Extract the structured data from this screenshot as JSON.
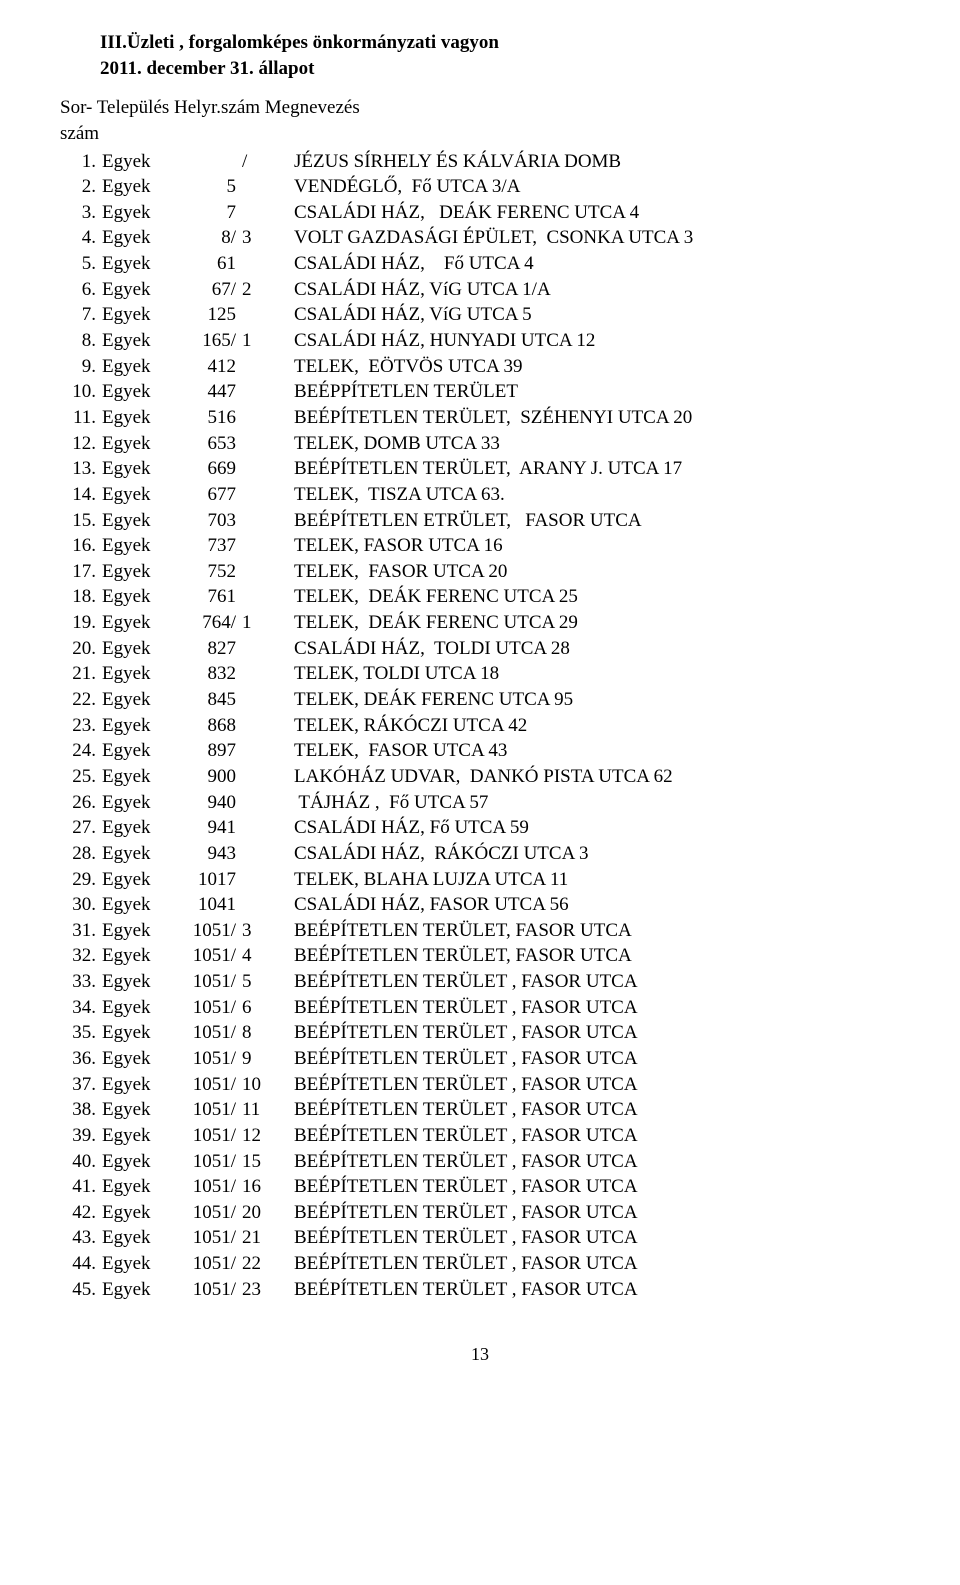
{
  "header": {
    "title_main": "III.Üzleti , forgalomképes önkormányzati vagyon",
    "title_sub": "2011. december 31. állapot",
    "col_line1": "Sor-  Település  Helyr.szám   Megnevezés",
    "col_line2": "szám"
  },
  "page_number": "13",
  "rows": [
    {
      "idx": "1.",
      "town": "Egyek",
      "hely": "",
      "sub": "/",
      "desc": "JÉZUS SÍRHELY ÉS KÁLVÁRIA DOMB"
    },
    {
      "idx": "2.",
      "town": "Egyek",
      "hely": "5",
      "sub": "",
      "desc": "VENDÉGLŐ,  Fő UTCA 3/A"
    },
    {
      "idx": "3.",
      "town": "Egyek",
      "hely": "7",
      "sub": "",
      "desc": "CSALÁDI HÁZ,   DEÁK FERENC UTCA 4"
    },
    {
      "idx": "4.",
      "town": "Egyek",
      "hely": "8/",
      "sub": "3",
      "desc": "VOLT GAZDASÁGI ÉPÜLET,  CSONKA UTCA 3"
    },
    {
      "idx": "5.",
      "town": "Egyek",
      "hely": "61",
      "sub": "",
      "desc": "CSALÁDI HÁZ,    Fő UTCA 4"
    },
    {
      "idx": "6.",
      "town": "Egyek",
      "hely": "67/",
      "sub": "2",
      "desc": "CSALÁDI HÁZ, VíG UTCA 1/A"
    },
    {
      "idx": "7.",
      "town": "Egyek",
      "hely": "125",
      "sub": "",
      "desc": "CSALÁDI HÁZ, VíG UTCA 5"
    },
    {
      "idx": "8.",
      "town": "Egyek",
      "hely": "165/",
      "sub": "1",
      "desc": "CSALÁDI HÁZ, HUNYADI UTCA 12"
    },
    {
      "idx": "9.",
      "town": "Egyek",
      "hely": "412",
      "sub": "",
      "desc": "TELEK,  EÖTVÖS UTCA 39"
    },
    {
      "idx": "10.",
      "town": "Egyek",
      "hely": "447",
      "sub": "",
      "desc": "BEÉPPÍTETLEN TERÜLET"
    },
    {
      "idx": "11.",
      "town": "Egyek",
      "hely": "516",
      "sub": "",
      "desc": "BEÉPÍTETLEN TERÜLET,  SZÉHENYI UTCA 20"
    },
    {
      "idx": "12.",
      "town": "Egyek",
      "hely": "653",
      "sub": "",
      "desc": "TELEK, DOMB UTCA 33"
    },
    {
      "idx": "13.",
      "town": "Egyek",
      "hely": "669",
      "sub": "",
      "desc": "BEÉPÍTETLEN TERÜLET,  ARANY J. UTCA 17"
    },
    {
      "idx": "14.",
      "town": "Egyek",
      "hely": "677",
      "sub": "",
      "desc": "TELEK,  TISZA UTCA 63."
    },
    {
      "idx": "15.",
      "town": "Egyek",
      "hely": "703",
      "sub": "",
      "desc": "BEÉPÍTETLEN ETRÜLET,   FASOR UTCA"
    },
    {
      "idx": "16.",
      "town": "Egyek",
      "hely": "737",
      "sub": "",
      "desc": "TELEK, FASOR UTCA 16"
    },
    {
      "idx": "17.",
      "town": "Egyek",
      "hely": "752",
      "sub": "",
      "desc": "TELEK,  FASOR UTCA 20"
    },
    {
      "idx": "18.",
      "town": "Egyek",
      "hely": "761",
      "sub": "",
      "desc": "TELEK,  DEÁK FERENC UTCA 25"
    },
    {
      "idx": "19.",
      "town": "Egyek",
      "hely": "764/",
      "sub": "1",
      "desc": "TELEK,  DEÁK FERENC UTCA 29"
    },
    {
      "idx": "20.",
      "town": "Egyek",
      "hely": "827",
      "sub": "",
      "desc": "CSALÁDI HÁZ,  TOLDI UTCA 28"
    },
    {
      "idx": "21.",
      "town": "Egyek",
      "hely": "832",
      "sub": "",
      "desc": "TELEK, TOLDI UTCA 18"
    },
    {
      "idx": "22.",
      "town": "Egyek",
      "hely": "845",
      "sub": "",
      "desc": "TELEK, DEÁK FERENC UTCA 95"
    },
    {
      "idx": "23.",
      "town": "Egyek",
      "hely": "868",
      "sub": "",
      "desc": "TELEK, RÁKÓCZI UTCA 42"
    },
    {
      "idx": "24.",
      "town": "Egyek",
      "hely": "897",
      "sub": "",
      "desc": "TELEK,  FASOR UTCA 43"
    },
    {
      "idx": "25.",
      "town": "Egyek",
      "hely": "900",
      "sub": "",
      "desc": "LAKÓHÁZ UDVAR,  DANKÓ PISTA UTCA 62"
    },
    {
      "idx": "26.",
      "town": "Egyek",
      "hely": "940",
      "sub": "",
      "desc": " TÁJHÁZ ,  Fő UTCA 57"
    },
    {
      "idx": "27.",
      "town": "Egyek",
      "hely": "941",
      "sub": "",
      "desc": "CSALÁDI HÁZ, Fő UTCA 59"
    },
    {
      "idx": "28.",
      "town": "Egyek",
      "hely": "943",
      "sub": "",
      "desc": "CSALÁDI HÁZ,  RÁKÓCZI UTCA 3"
    },
    {
      "idx": "29.",
      "town": "Egyek",
      "hely": "1017",
      "sub": "",
      "desc": "TELEK, BLAHA LUJZA UTCA 11"
    },
    {
      "idx": "30.",
      "town": "Egyek",
      "hely": "1041",
      "sub": "",
      "desc": "CSALÁDI HÁZ, FASOR UTCA 56"
    },
    {
      "idx": "31.",
      "town": "Egyek",
      "hely": "1051/",
      "sub": "3",
      "desc": "BEÉPÍTETLEN TERÜLET, FASOR UTCA"
    },
    {
      "idx": "32.",
      "town": "Egyek",
      "hely": "1051/",
      "sub": "4",
      "desc": "BEÉPÍTETLEN TERÜLET, FASOR UTCA"
    },
    {
      "idx": "33.",
      "town": "Egyek",
      "hely": "1051/",
      "sub": "5",
      "desc": "BEÉPÍTETLEN TERÜLET , FASOR UTCA"
    },
    {
      "idx": "34.",
      "town": "Egyek",
      "hely": "1051/",
      "sub": "6",
      "desc": "BEÉPÍTETLEN TERÜLET , FASOR UTCA"
    },
    {
      "idx": "35.",
      "town": "Egyek",
      "hely": "1051/",
      "sub": "8",
      "desc": "BEÉPÍTETLEN TERÜLET , FASOR UTCA"
    },
    {
      "idx": "36.",
      "town": "Egyek",
      "hely": "1051/",
      "sub": "9",
      "desc": "BEÉPÍTETLEN TERÜLET , FASOR UTCA"
    },
    {
      "idx": "37.",
      "town": "Egyek",
      "hely": "1051/",
      "sub": "10",
      "desc": "BEÉPÍTETLEN TERÜLET , FASOR UTCA"
    },
    {
      "idx": "38.",
      "town": "Egyek",
      "hely": "1051/",
      "sub": "11",
      "desc": "BEÉPÍTETLEN TERÜLET , FASOR UTCA"
    },
    {
      "idx": "39.",
      "town": "Egyek",
      "hely": "1051/",
      "sub": "12",
      "desc": "BEÉPÍTETLEN TERÜLET , FASOR UTCA"
    },
    {
      "idx": "40.",
      "town": "Egyek",
      "hely": "1051/",
      "sub": "15",
      "desc": "BEÉPÍTETLEN TERÜLET , FASOR UTCA"
    },
    {
      "idx": "41.",
      "town": "Egyek",
      "hely": "1051/",
      "sub": "16",
      "desc": "BEÉPÍTETLEN TERÜLET , FASOR UTCA"
    },
    {
      "idx": "42.",
      "town": "Egyek",
      "hely": "1051/",
      "sub": "20",
      "desc": "BEÉPÍTETLEN TERÜLET , FASOR UTCA"
    },
    {
      "idx": "43.",
      "town": "Egyek",
      "hely": "1051/",
      "sub": "21",
      "desc": "BEÉPÍTETLEN TERÜLET , FASOR UTCA"
    },
    {
      "idx": "44.",
      "town": "Egyek",
      "hely": "1051/",
      "sub": "22",
      "desc": "BEÉPÍTETLEN TERÜLET , FASOR UTCA"
    },
    {
      "idx": "45.",
      "town": "Egyek",
      "hely": "1051/",
      "sub": "23",
      "desc": "BEÉPÍTETLEN TERÜLET , FASOR UTCA"
    }
  ]
}
